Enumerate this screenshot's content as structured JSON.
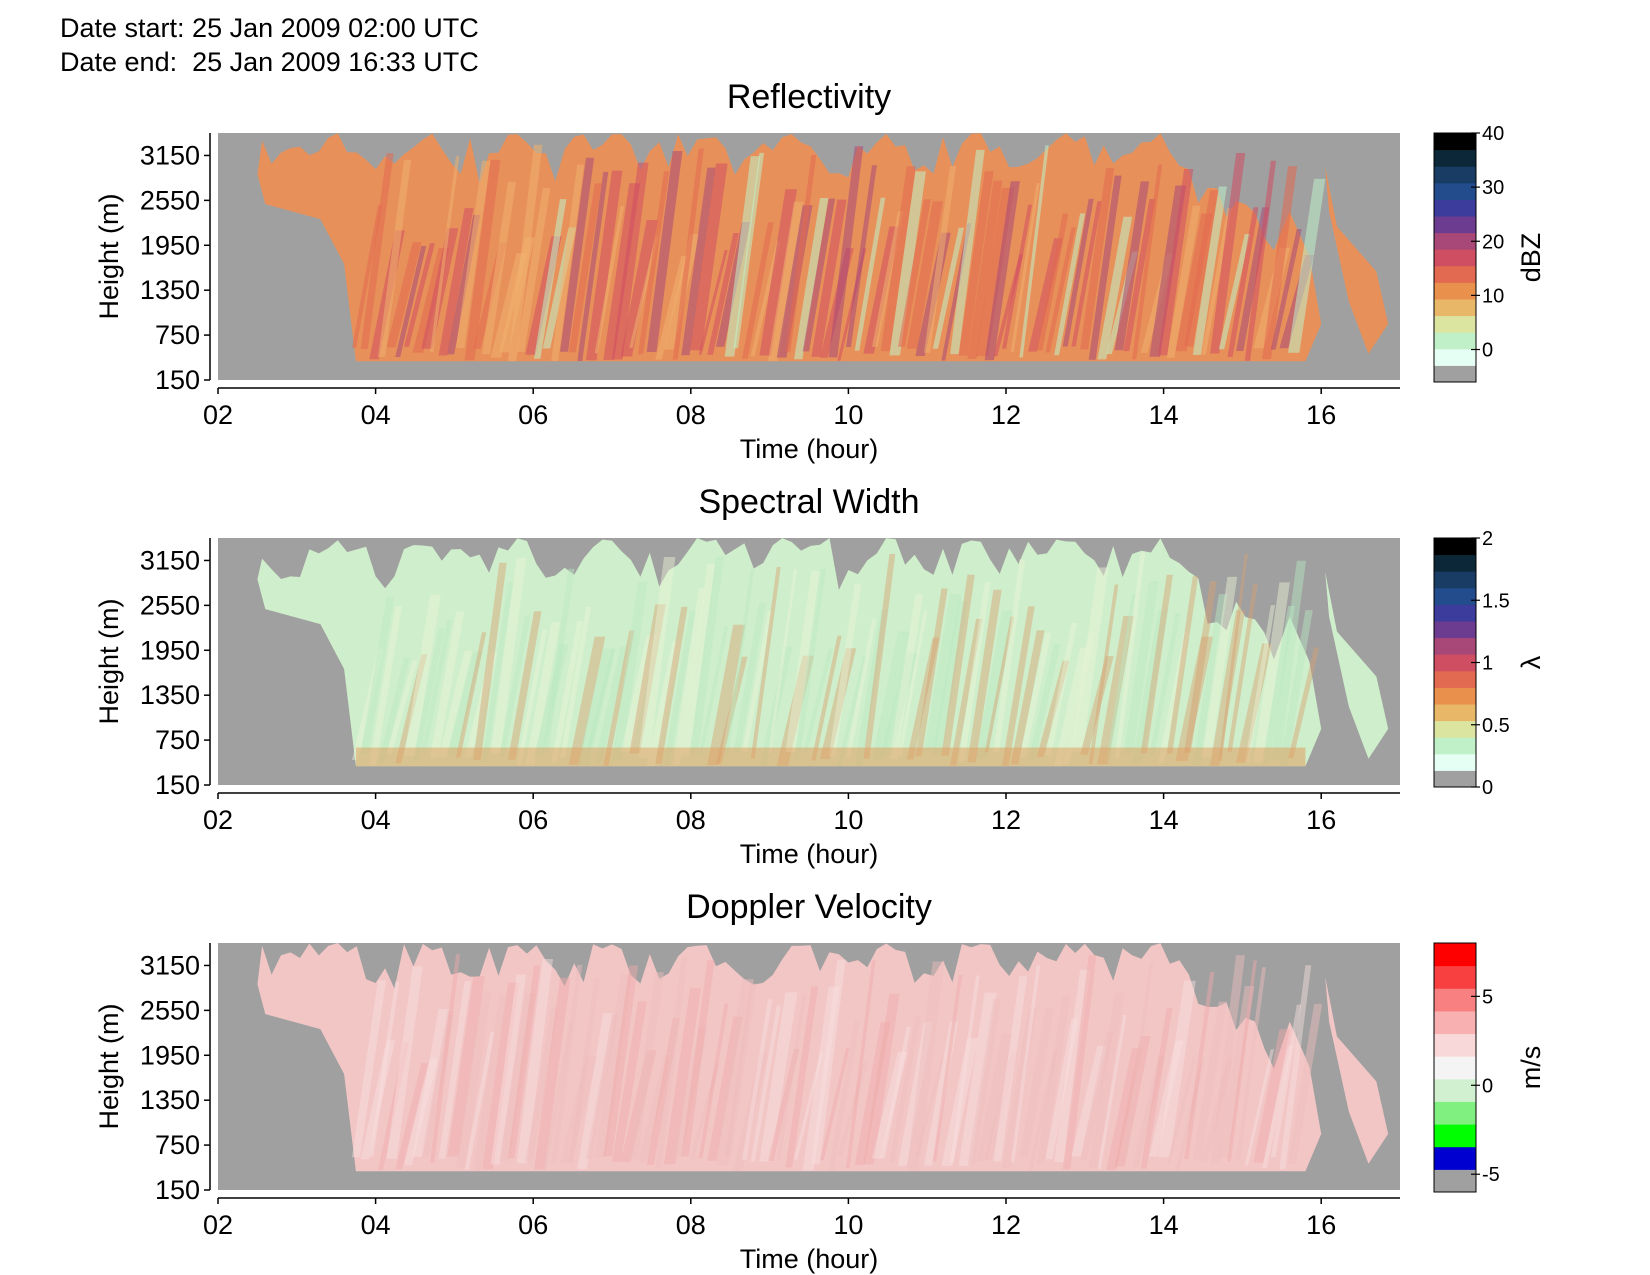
{
  "header": {
    "date_start": "Date start: 25 Jan 2009 02:00 UTC",
    "date_end": "Date end:  25 Jan 2009 16:33 UTC"
  },
  "chart_data": [
    {
      "type": "heatmap",
      "title": "Reflectivity",
      "xlabel": "Time (hour)",
      "ylabel": "Height (m)",
      "x_tick_labels": [
        "02",
        "04",
        "06",
        "08",
        "10",
        "12",
        "14",
        "16"
      ],
      "x_ticks": [
        2,
        4,
        6,
        8,
        10,
        12,
        14,
        16
      ],
      "xlim": [
        2,
        17
      ],
      "y_tick_labels": [
        "150",
        "750",
        "1350",
        "1950",
        "2550",
        "3150"
      ],
      "y_ticks": [
        150,
        750,
        1350,
        1950,
        2550,
        3150
      ],
      "ylim": [
        150,
        3450
      ],
      "colorbar": {
        "label": "dBZ",
        "tick_labels": [
          "0",
          "10",
          "20",
          "30",
          "40"
        ],
        "ticks": [
          0,
          10,
          20,
          30,
          40
        ],
        "range": [
          -6,
          40
        ],
        "colors": [
          "#a0a0a0",
          "#e6fff4",
          "#c0f0c8",
          "#dbe5a0",
          "#e8b868",
          "#e8904c",
          "#e26a50",
          "#d04e62",
          "#a84878",
          "#6c3c90",
          "#3c3c9c",
          "#224c8c",
          "#183c64",
          "#0c2838",
          "#000000"
        ]
      },
      "data_coverage": {
        "time_start": 2.5,
        "time_end": 16.7,
        "min_height": 400,
        "max_height": 3450
      },
      "background_color": "#a0a0a0"
    },
    {
      "type": "heatmap",
      "title": "Spectral Width",
      "xlabel": "Time (hour)",
      "ylabel": "Height (m)",
      "x_tick_labels": [
        "02",
        "04",
        "06",
        "08",
        "10",
        "12",
        "14",
        "16"
      ],
      "x_ticks": [
        2,
        4,
        6,
        8,
        10,
        12,
        14,
        16
      ],
      "xlim": [
        2,
        17
      ],
      "y_tick_labels": [
        "150",
        "750",
        "1350",
        "1950",
        "2550",
        "3150"
      ],
      "y_ticks": [
        150,
        750,
        1350,
        1950,
        2550,
        3150
      ],
      "ylim": [
        150,
        3450
      ],
      "colorbar": {
        "label": "λ",
        "tick_labels": [
          "0",
          "0.5",
          "1",
          "1.5",
          "2"
        ],
        "ticks": [
          0,
          0.5,
          1,
          1.5,
          2
        ],
        "range": [
          0,
          2
        ],
        "colors": [
          "#a0a0a0",
          "#e6fff4",
          "#c0f0c8",
          "#dbe5a0",
          "#e8b868",
          "#e8904c",
          "#e26a50",
          "#d04e62",
          "#a84878",
          "#6c3c90",
          "#3c3c9c",
          "#224c8c",
          "#183c64",
          "#0c2838",
          "#000000"
        ]
      },
      "data_coverage": {
        "time_start": 2.5,
        "time_end": 16.7,
        "min_height": 400,
        "max_height": 3450
      },
      "background_color": "#a0a0a0"
    },
    {
      "type": "heatmap",
      "title": "Doppler Velocity",
      "xlabel": "Time (hour)",
      "ylabel": "Height (m)",
      "x_tick_labels": [
        "02",
        "04",
        "06",
        "08",
        "10",
        "12",
        "14",
        "16"
      ],
      "x_ticks": [
        2,
        4,
        6,
        8,
        10,
        12,
        14,
        16
      ],
      "xlim": [
        2,
        17
      ],
      "y_tick_labels": [
        "150",
        "750",
        "1350",
        "1950",
        "2550",
        "3150"
      ],
      "y_ticks": [
        150,
        750,
        1350,
        1950,
        2550,
        3150
      ],
      "ylim": [
        150,
        3450
      ],
      "colorbar": {
        "label": "m/s",
        "tick_labels": [
          "-5",
          "0",
          "5"
        ],
        "ticks": [
          -5,
          0,
          5
        ],
        "range": [
          -6,
          8
        ],
        "colors": [
          "#a0a0a0",
          "#0000d0",
          "#00ff00",
          "#80f080",
          "#d0f0d0",
          "#f4f4f4",
          "#f8d8d8",
          "#f8b0b0",
          "#f88080",
          "#f84040",
          "#ff0000"
        ]
      },
      "data_coverage": {
        "time_start": 2.5,
        "time_end": 16.7,
        "min_height": 400,
        "max_height": 3450
      },
      "background_color": "#a0a0a0"
    }
  ]
}
